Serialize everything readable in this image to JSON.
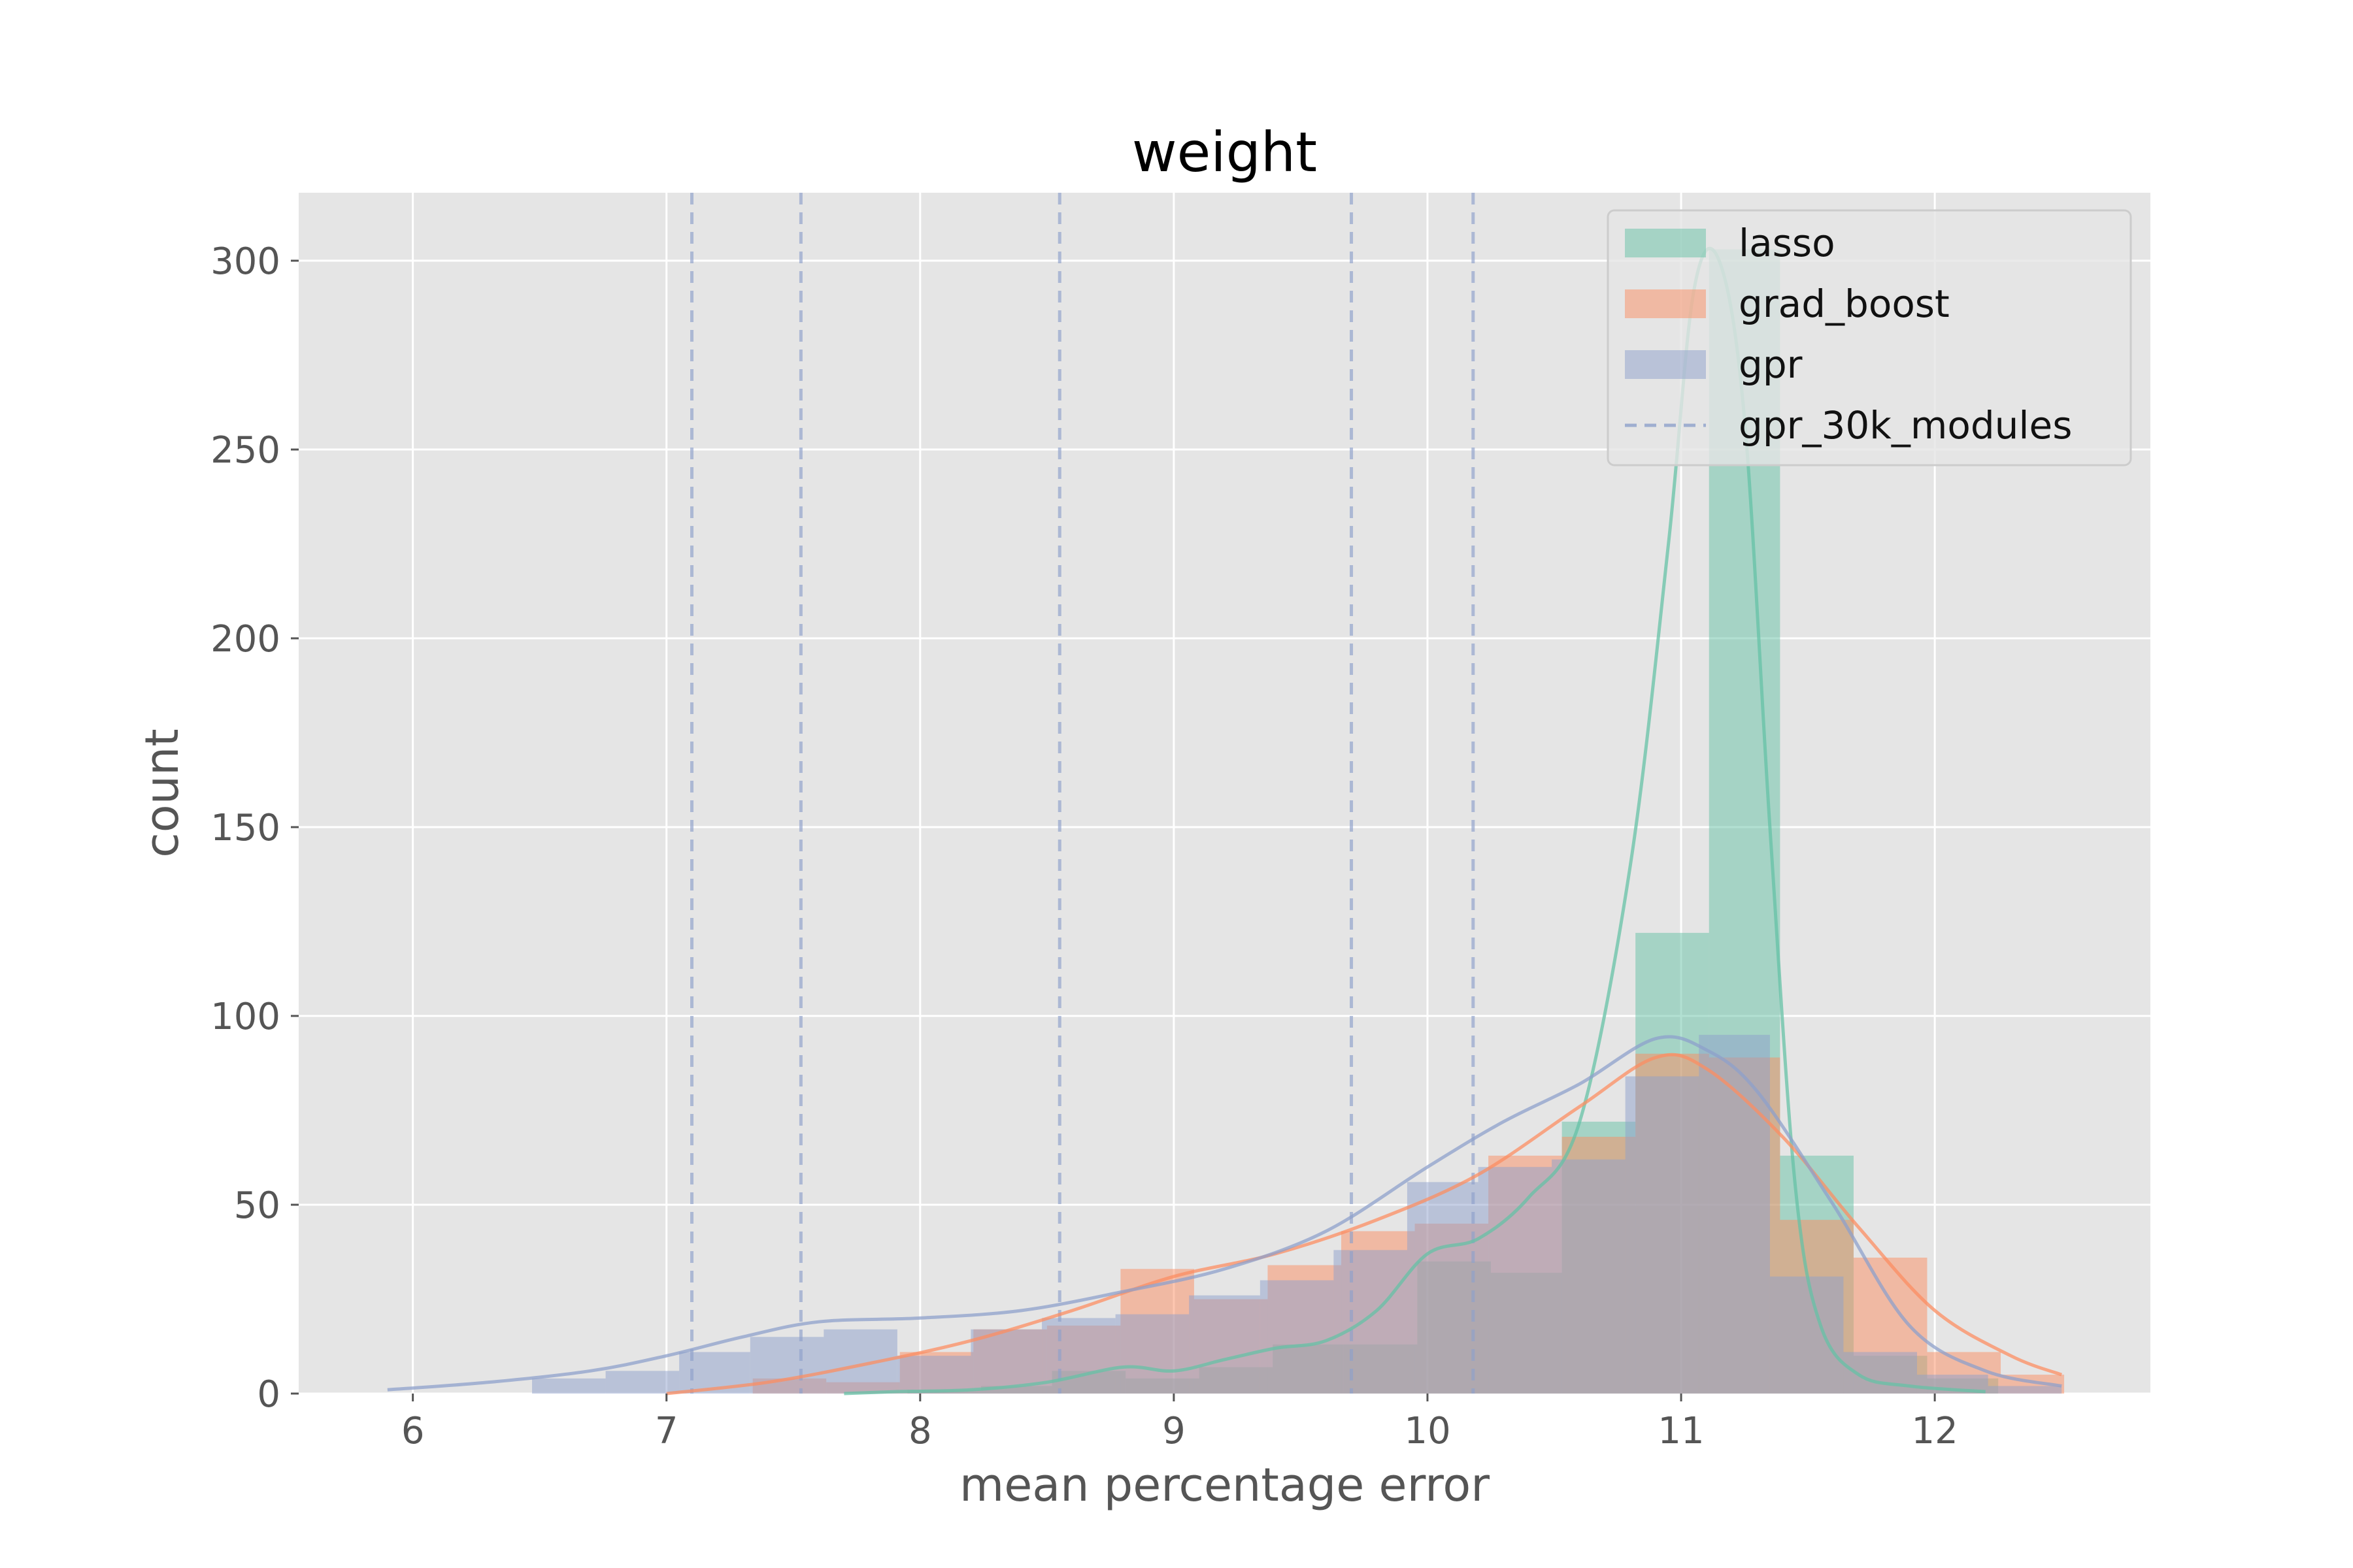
{
  "chart_data": {
    "type": "histogram",
    "title": "weight",
    "xlabel": "mean percentage error",
    "ylabel": "count",
    "xlim": [
      5.55,
      12.85
    ],
    "ylim": [
      0,
      318
    ],
    "xticks": [
      6,
      7,
      8,
      9,
      10,
      11,
      12
    ],
    "yticks": [
      0,
      50,
      100,
      150,
      200,
      250,
      300
    ],
    "grid": true,
    "legend_position": "top-right",
    "colors": {
      "lasso": "#66c2a5",
      "grad_boost": "#fc8d62",
      "gpr": "#8da0cb",
      "background": "#e5e5e5",
      "grid": "#ffffff"
    },
    "series": [
      {
        "name": "lasso",
        "bin_edges": [
          7.95,
          8.24,
          8.52,
          8.81,
          9.1,
          9.39,
          9.67,
          9.96,
          10.25,
          10.53,
          10.82,
          11.11,
          11.39,
          11.68,
          11.97,
          12.25
        ],
        "counts": [
          1,
          2,
          6,
          4,
          7,
          13,
          13,
          35,
          32,
          72,
          122,
          303,
          63,
          10,
          4
        ],
        "kde": [
          [
            7.7,
            0
          ],
          [
            7.9,
            0.5
          ],
          [
            8.2,
            1
          ],
          [
            8.5,
            3
          ],
          [
            8.8,
            7
          ],
          [
            9.0,
            6
          ],
          [
            9.2,
            9
          ],
          [
            9.4,
            12
          ],
          [
            9.6,
            14
          ],
          [
            9.8,
            22
          ],
          [
            10.0,
            37
          ],
          [
            10.2,
            41
          ],
          [
            10.4,
            52
          ],
          [
            10.6,
            72
          ],
          [
            10.8,
            140
          ],
          [
            10.95,
            225
          ],
          [
            11.05,
            292
          ],
          [
            11.15,
            300
          ],
          [
            11.25,
            258
          ],
          [
            11.35,
            150
          ],
          [
            11.45,
            55
          ],
          [
            11.55,
            18
          ],
          [
            11.7,
            5
          ],
          [
            11.9,
            2
          ],
          [
            12.2,
            0.5
          ]
        ]
      },
      {
        "name": "grad_boost",
        "bin_edges": [
          7.34,
          7.63,
          7.92,
          8.21,
          8.5,
          8.79,
          9.08,
          9.37,
          9.66,
          9.95,
          10.24,
          10.53,
          10.82,
          11.11,
          11.39,
          11.68,
          11.97,
          12.26,
          12.51
        ],
        "counts": [
          4,
          3,
          11,
          17,
          18,
          33,
          25,
          34,
          43,
          45,
          63,
          68,
          90,
          89,
          46,
          36,
          11,
          5
        ],
        "kde": [
          [
            7.0,
            0
          ],
          [
            7.4,
            3
          ],
          [
            7.8,
            8
          ],
          [
            8.2,
            14
          ],
          [
            8.6,
            22
          ],
          [
            9.0,
            31
          ],
          [
            9.4,
            37
          ],
          [
            9.8,
            46
          ],
          [
            10.2,
            58
          ],
          [
            10.6,
            76
          ],
          [
            10.9,
            89
          ],
          [
            11.1,
            86
          ],
          [
            11.4,
            68
          ],
          [
            11.7,
            44
          ],
          [
            12.0,
            22
          ],
          [
            12.3,
            10
          ],
          [
            12.5,
            5
          ]
        ]
      },
      {
        "name": "gpr",
        "bin_edges": [
          6.47,
          6.76,
          7.05,
          7.33,
          7.62,
          7.91,
          8.2,
          8.48,
          8.77,
          9.06,
          9.34,
          9.63,
          9.92,
          10.2,
          10.49,
          10.78,
          11.07,
          11.35,
          11.64,
          11.93,
          12.21,
          12.5
        ],
        "counts": [
          4,
          6,
          11,
          15,
          17,
          10,
          17,
          20,
          21,
          26,
          30,
          38,
          56,
          60,
          62,
          84,
          95,
          31,
          11,
          5,
          2
        ],
        "kde": [
          [
            5.9,
            1
          ],
          [
            6.3,
            3
          ],
          [
            6.7,
            6
          ],
          [
            7.0,
            10
          ],
          [
            7.3,
            15
          ],
          [
            7.6,
            19
          ],
          [
            8.0,
            20
          ],
          [
            8.4,
            22
          ],
          [
            8.8,
            27
          ],
          [
            9.2,
            33
          ],
          [
            9.6,
            43
          ],
          [
            10.0,
            60
          ],
          [
            10.3,
            72
          ],
          [
            10.6,
            82
          ],
          [
            10.9,
            94
          ],
          [
            11.1,
            91
          ],
          [
            11.3,
            80
          ],
          [
            11.6,
            50
          ],
          [
            11.9,
            18
          ],
          [
            12.2,
            6
          ],
          [
            12.5,
            2
          ]
        ]
      }
    ],
    "vlines": {
      "name": "gpr_30k_modules",
      "x": [
        7.1,
        7.53,
        8.55,
        9.7,
        10.18
      ]
    }
  }
}
